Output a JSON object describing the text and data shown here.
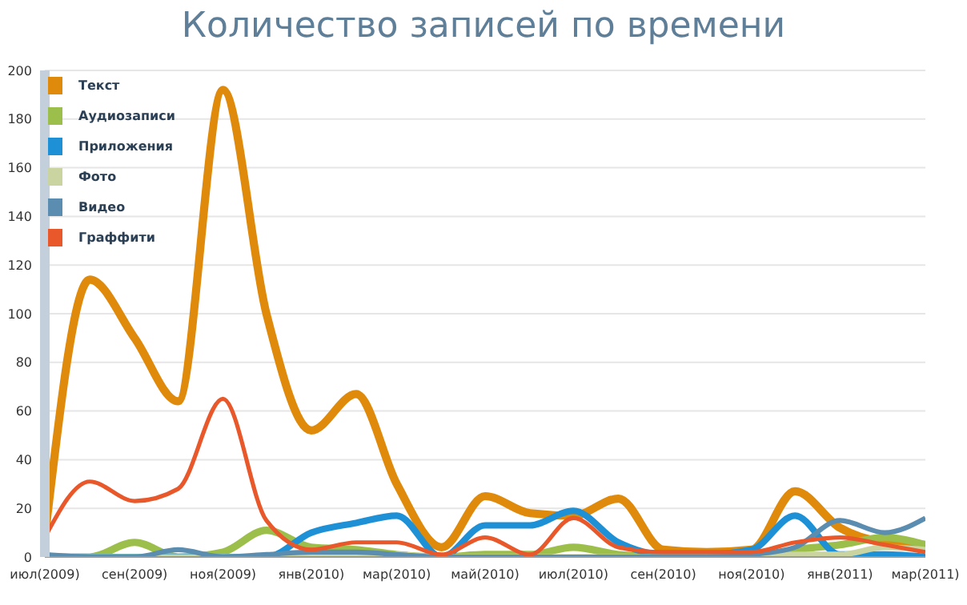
{
  "chart_data": {
    "type": "line",
    "title": "Количество записей по времени",
    "x": [
      "2009-07-01",
      "2009-08-01",
      "2009-09-01",
      "2009-10-01",
      "2009-11-01",
      "2009-12-01",
      "2010-01-01",
      "2010-02-01",
      "2010-03-01",
      "2010-04-01",
      "2010-05-01",
      "2010-06-01",
      "2010-07-01",
      "2010-08-01",
      "2010-09-01",
      "2010-10-01",
      "2010-11-01",
      "2010-12-01",
      "2011-01-01",
      "2011-02-01",
      "2011-03-01"
    ],
    "series": [
      {
        "name": "Текст",
        "color": "#e08a0b",
        "values": [
          8,
          114,
          90,
          64,
          192,
          100,
          52,
          67,
          30,
          4,
          25,
          18,
          17,
          24,
          3,
          2,
          3,
          27,
          12,
          6,
          5
        ]
      },
      {
        "name": "Аудиозаписи",
        "color": "#9bbf4a",
        "values": [
          0,
          0,
          6,
          0,
          2,
          11,
          4,
          3,
          1,
          0,
          1,
          1,
          4,
          1,
          0,
          0,
          0,
          3,
          5,
          8,
          5
        ]
      },
      {
        "name": "Приложения",
        "color": "#1e90d6",
        "values": [
          0,
          0,
          0,
          0,
          0,
          0,
          10,
          14,
          17,
          0,
          13,
          13,
          19,
          6,
          1,
          1,
          3,
          17,
          1,
          1,
          0
        ]
      },
      {
        "name": "Фото",
        "color": "#c9d4a0",
        "values": [
          0,
          0,
          0,
          0,
          0,
          0,
          1,
          1,
          1,
          0,
          0,
          0,
          0,
          0,
          0,
          0,
          0,
          1,
          1,
          4,
          3
        ]
      },
      {
        "name": "Видео",
        "color": "#5b8db0",
        "values": [
          1,
          0,
          0,
          3,
          0,
          1,
          2,
          2,
          1,
          0,
          0,
          0,
          0,
          0,
          0,
          0,
          1,
          4,
          15,
          10,
          16
        ]
      },
      {
        "name": "Граффити",
        "color": "#e8582a",
        "values": [
          8,
          31,
          23,
          28,
          65,
          15,
          3,
          6,
          6,
          1,
          8,
          1,
          16,
          4,
          2,
          2,
          2,
          6,
          8,
          5,
          2
        ]
      }
    ],
    "ylim": [
      0,
      200
    ],
    "yticks": [
      0,
      20,
      40,
      60,
      80,
      100,
      120,
      140,
      160,
      180,
      200
    ],
    "xlim": [
      "2009-07-01",
      "2011-03-01"
    ],
    "xticks": [
      {
        "value": "2009-07-01",
        "label": "июл(2009)"
      },
      {
        "value": "2009-09-01",
        "label": "сен(2009)"
      },
      {
        "value": "2009-11-01",
        "label": "ноя(2009)"
      },
      {
        "value": "2010-01-01",
        "label": "янв(2010)"
      },
      {
        "value": "2010-03-01",
        "label": "мар(2010)"
      },
      {
        "value": "2010-05-01",
        "label": "май(2010)"
      },
      {
        "value": "2010-07-01",
        "label": "июл(2010)"
      },
      {
        "value": "2010-09-01",
        "label": "сен(2010)"
      },
      {
        "value": "2010-11-01",
        "label": "ноя(2010)"
      },
      {
        "value": "2011-01-01",
        "label": "янв(2011)"
      },
      {
        "value": "2011-03-01",
        "label": "мар(2011)"
      }
    ],
    "grid": "y",
    "legend": "top left",
    "marker": "none",
    "line_style": "solid"
  }
}
